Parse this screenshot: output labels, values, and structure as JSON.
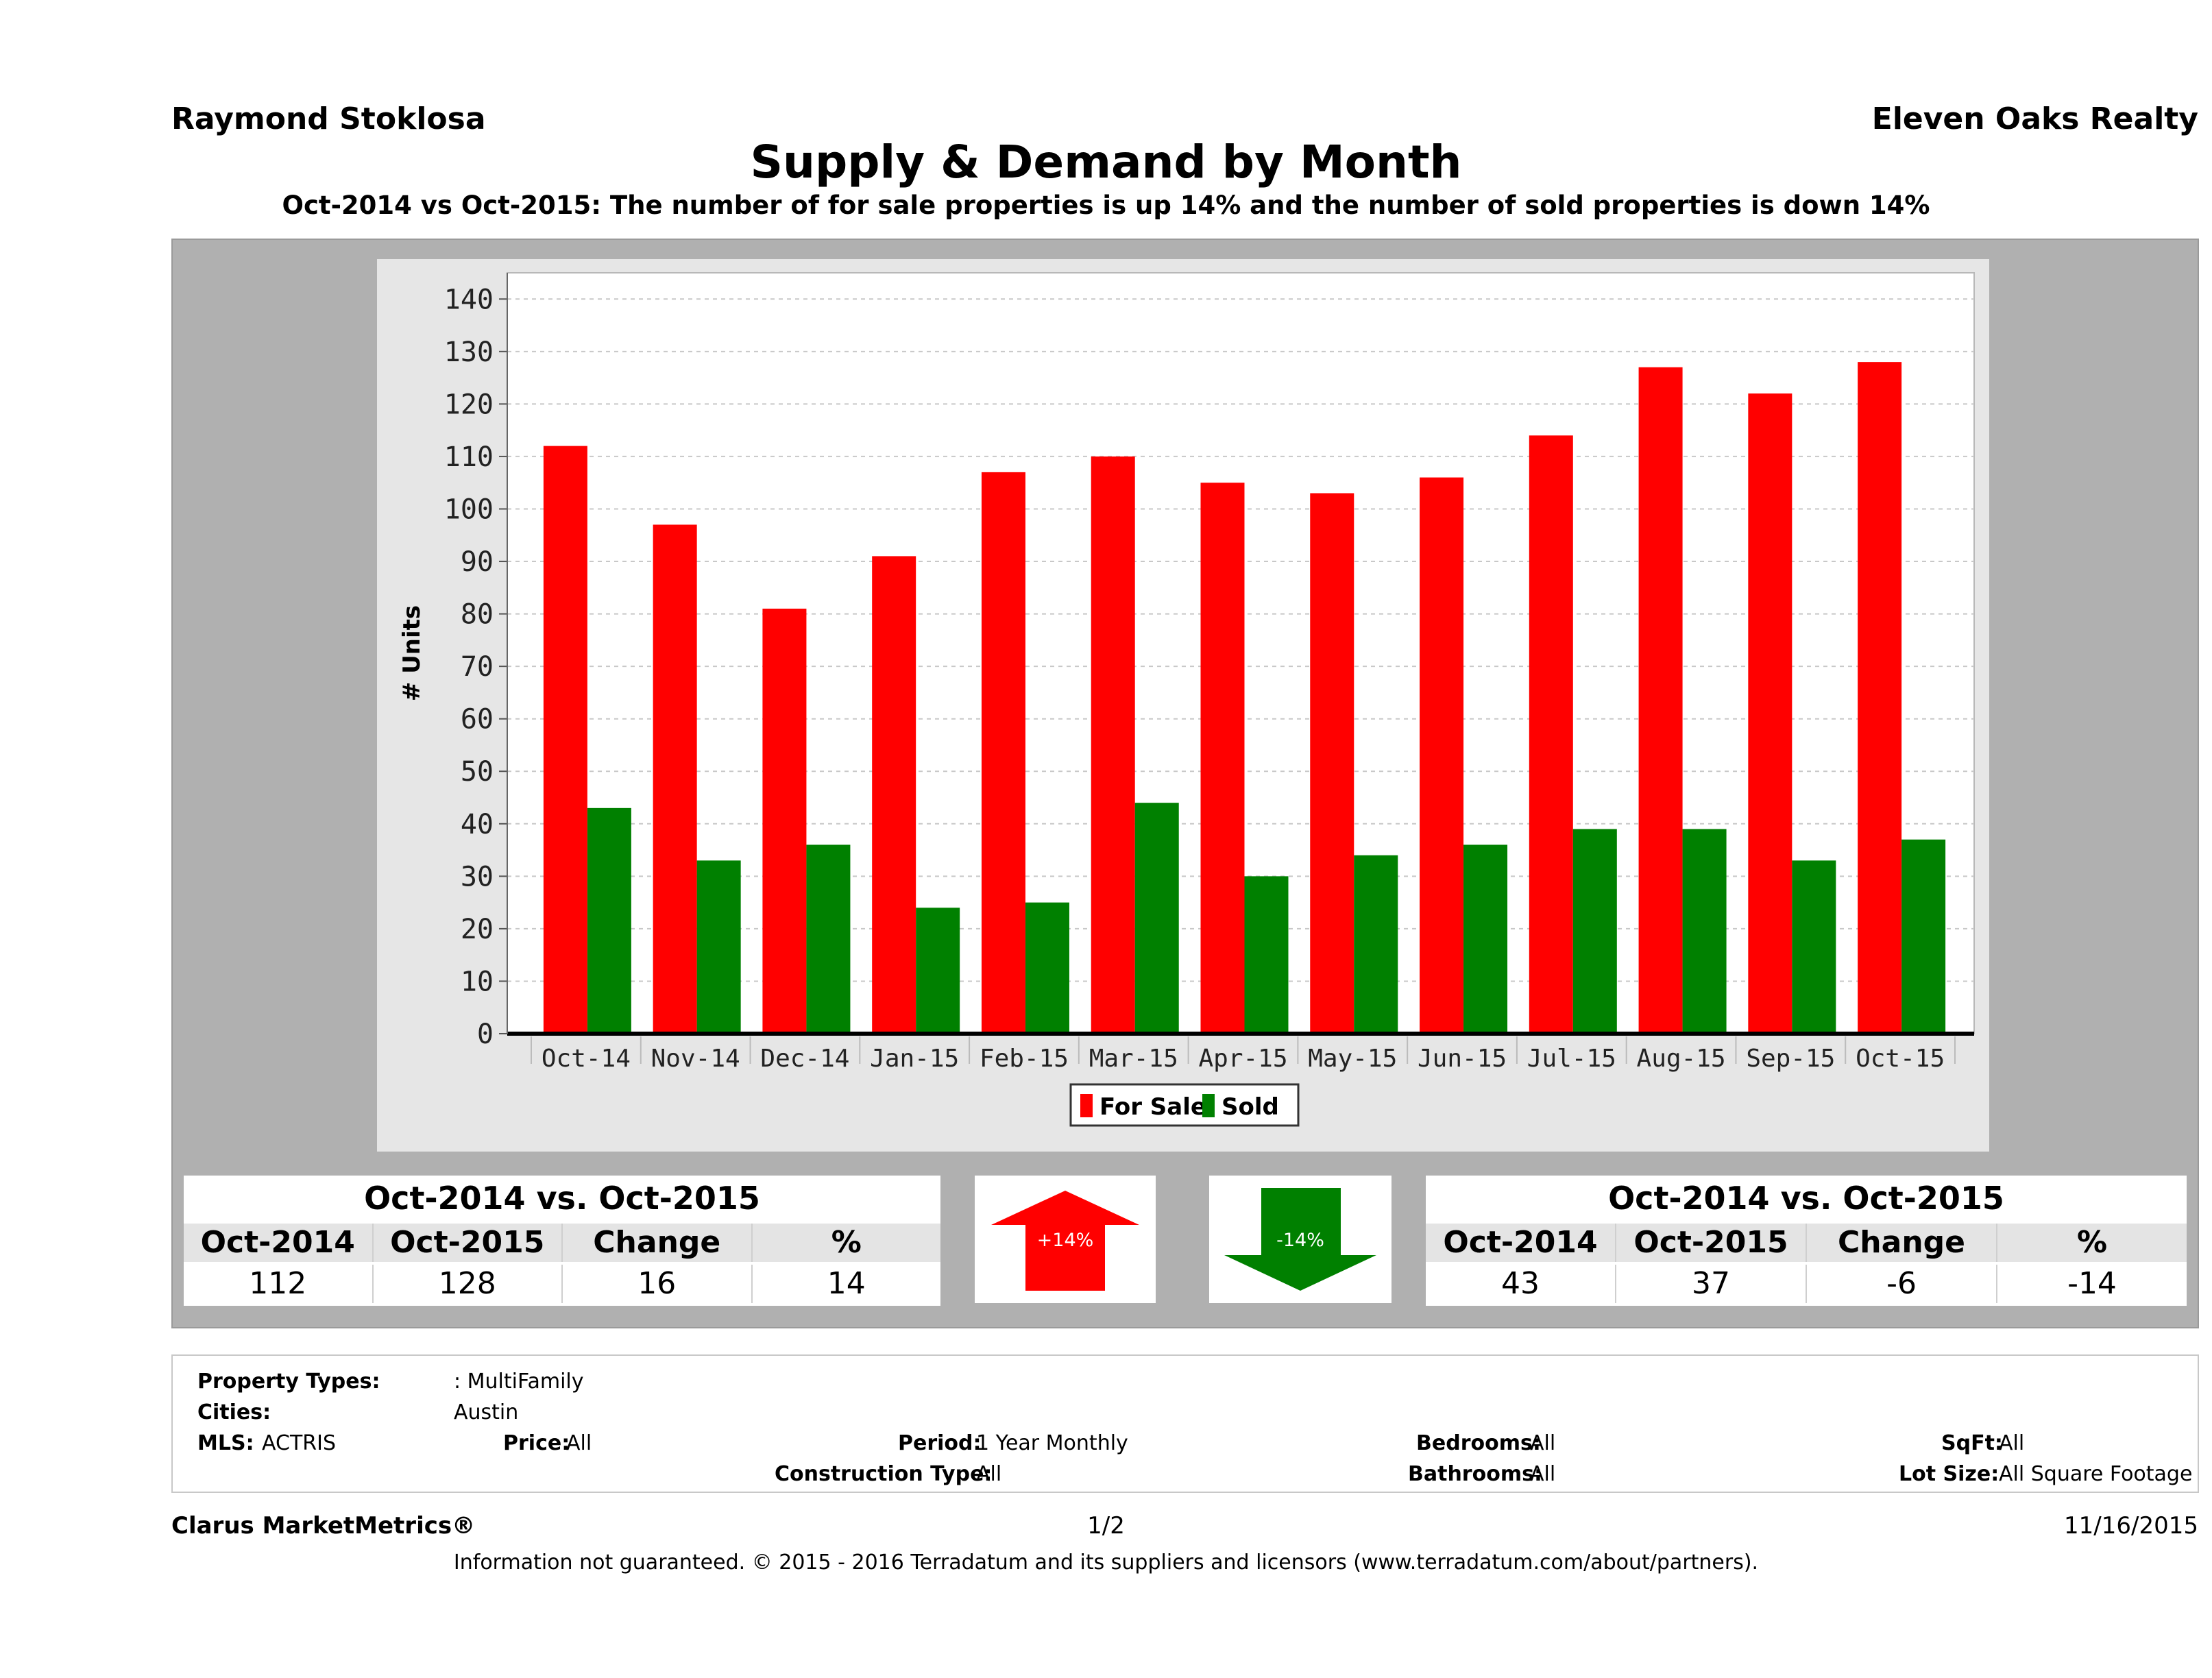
{
  "header": {
    "agent": "Raymond Stoklosa",
    "company": "Eleven Oaks Realty",
    "title": "Supply & Demand by Month",
    "subtitle": "Oct-2014 vs Oct-2015: The number of for sale properties is up 14% and the number of sold properties is down 14%"
  },
  "chart_data": {
    "type": "bar",
    "categories": [
      "Oct-14",
      "Nov-14",
      "Dec-14",
      "Jan-15",
      "Feb-15",
      "Mar-15",
      "Apr-15",
      "May-15",
      "Jun-15",
      "Jul-15",
      "Aug-15",
      "Sep-15",
      "Oct-15"
    ],
    "series": [
      {
        "name": "For Sale",
        "color": "#ff0000",
        "values": [
          112,
          97,
          81,
          91,
          107,
          110,
          105,
          103,
          106,
          114,
          127,
          122,
          128
        ]
      },
      {
        "name": "Sold",
        "color": "#008000",
        "values": [
          43,
          33,
          36,
          24,
          25,
          44,
          30,
          34,
          36,
          39,
          39,
          33,
          37
        ]
      }
    ],
    "ylabel": "# Units",
    "ylim": [
      0,
      140
    ],
    "yticks": [
      0,
      10,
      20,
      30,
      40,
      50,
      60,
      70,
      80,
      90,
      100,
      110,
      120,
      130,
      140
    ],
    "grid": true,
    "legend": "bottom-center"
  },
  "summary_for_sale": {
    "title": "Oct-2014 vs. Oct-2015",
    "headers": [
      "Oct-2014",
      "Oct-2015",
      "Change",
      "%"
    ],
    "values": [
      "112",
      "128",
      "16",
      "14"
    ],
    "badge": "+14%",
    "badge_color": "#ff0000"
  },
  "summary_sold": {
    "title": "Oct-2014 vs. Oct-2015",
    "headers": [
      "Oct-2014",
      "Oct-2015",
      "Change",
      "%"
    ],
    "values": [
      "43",
      "37",
      "-6",
      "-14"
    ],
    "badge": "-14%",
    "badge_color": "#008000"
  },
  "filters": {
    "property_types_label": "Property Types:",
    "property_types_value": ": MultiFamily",
    "cities_label": "Cities:",
    "cities_value": "Austin",
    "mls_label": "MLS:",
    "mls_value": "ACTRIS",
    "price_label": "Price:",
    "price_value": "All",
    "period_label": "Period:",
    "period_value": "1 Year Monthly",
    "construction_label": "Construction Type:",
    "construction_value": "All",
    "bedrooms_label": "Bedrooms:",
    "bedrooms_value": "All",
    "bathrooms_label": "Bathrooms:",
    "bathrooms_value": "All",
    "sqft_label": "SqFt:",
    "sqft_value": "All",
    "lotsize_label": "Lot Size:",
    "lotsize_value": "All Square Footage"
  },
  "footer": {
    "brand": "Clarus MarketMetrics®",
    "page": "1/2",
    "date": "11/16/2015",
    "disclaimer": "Information not guaranteed. © 2015 - 2016 Terradatum and its suppliers and licensors (www.terradatum.com/about/partners)."
  }
}
